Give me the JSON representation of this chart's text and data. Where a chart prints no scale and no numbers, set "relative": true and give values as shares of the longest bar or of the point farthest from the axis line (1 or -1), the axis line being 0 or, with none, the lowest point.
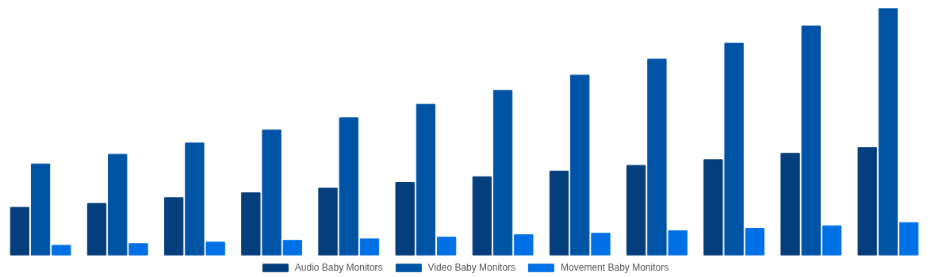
{
  "chart_data": {
    "type": "bar",
    "relative": true,
    "legend": "bottom",
    "categories": [
      null,
      null,
      null,
      null,
      null,
      null,
      null,
      null,
      null,
      null,
      null,
      null
    ],
    "series": [
      {
        "name": "Audio Baby Monitors",
        "color": "#043e7c",
        "values": [
          0.193,
          0.209,
          0.232,
          0.252,
          0.271,
          0.294,
          0.317,
          0.34,
          0.363,
          0.386,
          0.412,
          0.435
        ]
      },
      {
        "name": "Video Baby Monitors",
        "color": "#0054a6",
        "values": [
          0.369,
          0.408,
          0.454,
          0.507,
          0.556,
          0.611,
          0.667,
          0.729,
          0.794,
          0.859,
          0.928,
          1
        ]
      },
      {
        "name": "Movement Baby Monitors",
        "color": "#0070e6",
        "values": [
          0.039,
          0.046,
          0.052,
          0.059,
          0.065,
          0.072,
          0.082,
          0.088,
          0.098,
          0.108,
          0.118,
          0.131
        ]
      }
    ]
  }
}
